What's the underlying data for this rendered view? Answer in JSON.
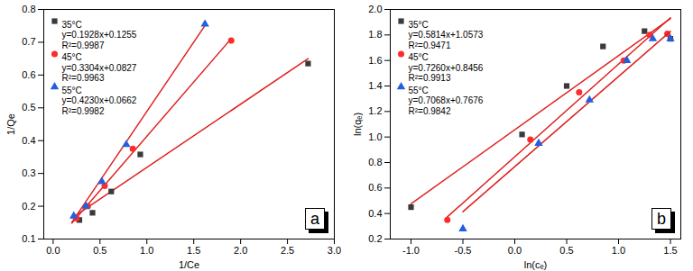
{
  "chart_data": [
    {
      "type": "scatter",
      "panel": "a",
      "x_label": "1/Ce",
      "y_label": "1/Qe",
      "legend": "top-left",
      "grid": false,
      "xlim": [
        -0.1,
        3.0
      ],
      "xticks": [
        {
          "value": 0,
          "label": "0.0"
        },
        0.5,
        {
          "value": 1,
          "label": "1.0"
        },
        1.5,
        {
          "value": 2,
          "label": "2.0"
        },
        2.5,
        {
          "value": 3,
          "label": "3.0"
        }
      ],
      "ylim": [
        0.1,
        0.8
      ],
      "yticks": [
        0.1,
        0.2,
        0.3,
        0.4,
        0.5,
        0.6,
        0.7,
        0.8
      ],
      "series": [
        {
          "name": "35°C",
          "color": "#3a3a3a",
          "marker": "square",
          "annotations": [
            "y=0.1928x+0.1255",
            "R²=0.9987"
          ],
          "x": [
            0.28,
            0.42,
            0.62,
            0.93,
            2.72
          ],
          "values": [
            0.158,
            0.18,
            0.245,
            0.358,
            0.635
          ],
          "fit_x": [
            0.2,
            2.72
          ],
          "fit_values": [
            0.164,
            0.65
          ]
        },
        {
          "name": "45°C",
          "color": "#ff2a2a",
          "marker": "circle",
          "annotations": [
            "y=0.3304x+0.0827",
            "R²=0.9963"
          ],
          "x": [
            0.25,
            0.37,
            0.55,
            0.85,
            1.9
          ],
          "values": [
            0.163,
            0.2,
            0.262,
            0.375,
            0.705
          ],
          "fit_x": [
            0.2,
            1.9
          ],
          "fit_values": [
            0.149,
            0.711
          ]
        },
        {
          "name": "55°C",
          "color": "#2060e0",
          "marker": "triangle",
          "annotations": [
            "y=0.4230x+0.0662",
            "R²=0.9982"
          ],
          "x": [
            0.22,
            0.35,
            0.52,
            0.78,
            1.62
          ],
          "values": [
            0.17,
            0.2,
            0.275,
            0.388,
            0.755
          ],
          "fit_x": [
            0.2,
            1.62
          ],
          "fit_values": [
            0.151,
            0.751
          ]
        }
      ]
    },
    {
      "type": "scatter",
      "panel": "b",
      "x_label": "ln(cₑ)",
      "y_label": "ln(qₑ)",
      "legend": "top-left",
      "grid": false,
      "xlim": [
        -1.2,
        1.6
      ],
      "xticks": [
        {
          "value": -1,
          "label": "-1.0"
        },
        -0.5,
        {
          "value": 0,
          "label": "0.0"
        },
        0.5,
        {
          "value": 1,
          "label": "1.0"
        },
        1.5
      ],
      "ylim": [
        0.2,
        2.0
      ],
      "yticks": [
        0.2,
        0.4,
        0.6,
        0.8,
        {
          "value": 1,
          "label": "1.0"
        },
        1.2,
        1.4,
        1.6,
        1.8,
        {
          "value": 2,
          "label": "2.0"
        }
      ],
      "series": [
        {
          "name": "35°C",
          "color": "#3a3a3a",
          "marker": "square",
          "annotations": [
            "y=0.5814x+1.0573",
            "R²=0.9471"
          ],
          "x": [
            -1.0,
            0.07,
            0.5,
            0.85,
            1.25,
            1.5
          ],
          "values": [
            0.45,
            1.02,
            1.4,
            1.71,
            1.83,
            1.77
          ],
          "fit_x": [
            -1.0,
            1.5
          ],
          "fit_values": [
            0.476,
            1.929
          ]
        },
        {
          "name": "45°C",
          "color": "#ff2a2a",
          "marker": "circle",
          "annotations": [
            "y=0.7260x+0.8456",
            "R²=0.9913"
          ],
          "x": [
            -0.65,
            0.15,
            0.62,
            1.05,
            1.3,
            1.47
          ],
          "values": [
            0.35,
            0.98,
            1.35,
            1.6,
            1.8,
            1.81
          ],
          "fit_x": [
            -0.65,
            1.5
          ],
          "fit_values": [
            0.374,
            1.935
          ]
        },
        {
          "name": "55°C",
          "color": "#2060e0",
          "marker": "triangle",
          "annotations": [
            "y=0.7068x+0.7676",
            "R²=0.9842"
          ],
          "x": [
            -0.5,
            0.23,
            0.72,
            1.08,
            1.33,
            1.5
          ],
          "values": [
            0.28,
            0.95,
            1.29,
            1.6,
            1.77,
            1.77
          ],
          "fit_x": [
            -0.5,
            1.5
          ],
          "fit_values": [
            0.414,
            1.828
          ]
        }
      ]
    }
  ]
}
